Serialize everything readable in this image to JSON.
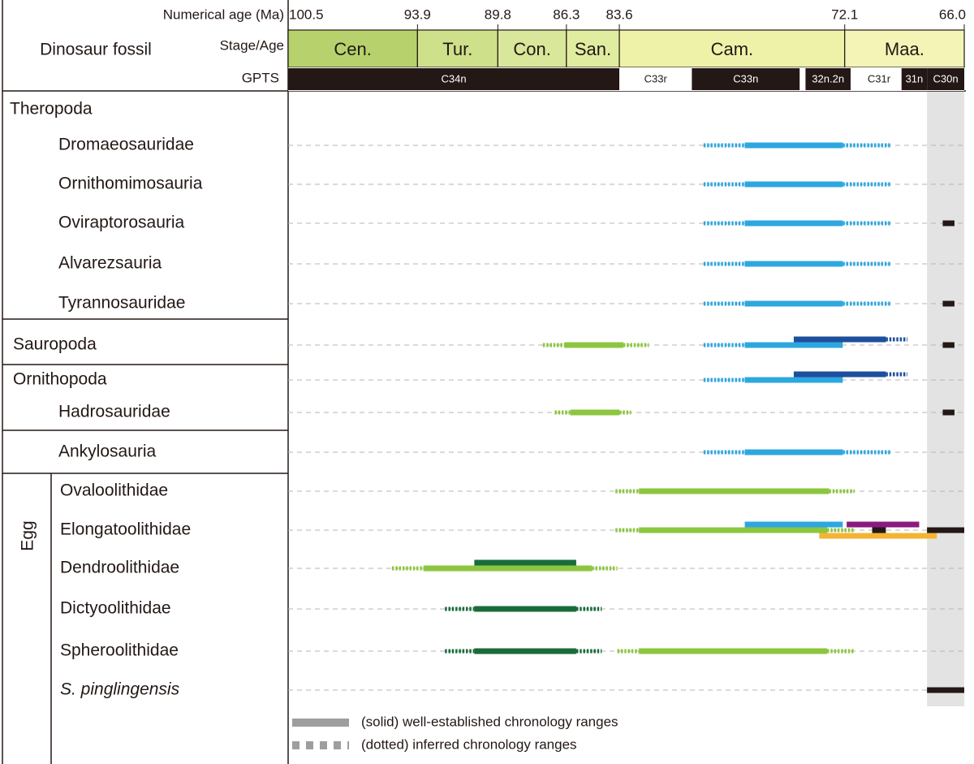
{
  "chart_data": {
    "type": "range",
    "age_label": "Numerical age (Ma)",
    "fossil_label": "Dinosaur fossil",
    "stage_label": "Stage/Age",
    "gpts_label": "GPTS",
    "xlim": [
      100.5,
      66.0
    ],
    "xticks": [
      100.5,
      93.9,
      89.8,
      86.3,
      83.6,
      72.1,
      {
        "value": 66.0,
        "label": "66.0"
      }
    ],
    "stages": [
      {
        "name": "Cen.",
        "color": "#b7d26c"
      },
      {
        "name": "Tur.",
        "color": "#cfe08b"
      },
      {
        "name": "Con.",
        "color": "#d8e799"
      },
      {
        "name": "San.",
        "color": "#e0ec9f"
      },
      {
        "name": "Cam.",
        "color": "#eef2a9"
      },
      {
        "name": "Maa.",
        "color": "#f3f4b5"
      }
    ],
    "gpts": [
      {
        "name": "C34n",
        "from": 100.5,
        "to": 83.6,
        "color": "#231815"
      },
      {
        "name": "C33r",
        "from": 83.6,
        "to": 79.9,
        "color": "#ffffff"
      },
      {
        "name": "C33n",
        "from": 79.9,
        "to": 74.4,
        "color": "#231815"
      },
      {
        "name": "32n.2n",
        "from": 74.1,
        "to": 71.8,
        "color": "#231815"
      },
      {
        "name": "C31r",
        "from": 71.5,
        "to": 69.2,
        "color": "#ffffff"
      },
      {
        "name": "31n",
        "from": 69.2,
        "to": 67.9,
        "color": "#231815"
      },
      {
        "name": "C30n",
        "from": 67.9,
        "to": 66.0,
        "color": "#231815",
        "shade": true
      }
    ],
    "groups": [
      {
        "name": "Theropoda",
        "members": [
          {
            "name": "Dromaeosauridae",
            "ranges": [
              {
                "from": 79.3,
                "to": 77.2,
                "style": "dotted",
                "color": "#2ea7e0"
              },
              {
                "from": 77.2,
                "to": 72.2,
                "style": "solid",
                "color": "#2ea7e0"
              },
              {
                "from": 72.2,
                "to": 69.75,
                "style": "dotted",
                "color": "#2ea7e0"
              }
            ]
          },
          {
            "name": "Ornithomimosauria",
            "ranges": [
              {
                "from": 79.3,
                "to": 77.2,
                "style": "dotted",
                "color": "#2ea7e0"
              },
              {
                "from": 77.2,
                "to": 72.2,
                "style": "solid",
                "color": "#2ea7e0"
              },
              {
                "from": 72.2,
                "to": 69.75,
                "style": "dotted",
                "color": "#2ea7e0"
              }
            ]
          },
          {
            "name": "Oviraptorosauria",
            "ranges": [
              {
                "from": 79.3,
                "to": 77.2,
                "style": "dotted",
                "color": "#2ea7e0"
              },
              {
                "from": 77.2,
                "to": 72.2,
                "style": "solid",
                "color": "#2ea7e0"
              },
              {
                "from": 72.2,
                "to": 69.75,
                "style": "dotted",
                "color": "#2ea7e0"
              },
              {
                "from": 67.1,
                "to": 66.5,
                "style": "solid",
                "color": "#231815"
              }
            ]
          },
          {
            "name": "Alvarezsauria",
            "ranges": [
              {
                "from": 79.3,
                "to": 77.2,
                "style": "dotted",
                "color": "#2ea7e0"
              },
              {
                "from": 77.2,
                "to": 72.2,
                "style": "solid",
                "color": "#2ea7e0"
              },
              {
                "from": 72.2,
                "to": 69.75,
                "style": "dotted",
                "color": "#2ea7e0"
              }
            ]
          },
          {
            "name": "Tyrannosauridae",
            "ranges": [
              {
                "from": 79.3,
                "to": 77.2,
                "style": "dotted",
                "color": "#2ea7e0"
              },
              {
                "from": 77.2,
                "to": 72.2,
                "style": "solid",
                "color": "#2ea7e0"
              },
              {
                "from": 72.2,
                "to": 69.75,
                "style": "dotted",
                "color": "#2ea7e0"
              },
              {
                "from": 67.1,
                "to": 66.5,
                "style": "solid",
                "color": "#231815"
              }
            ]
          }
        ]
      },
      {
        "name": "Sauropoda",
        "ranges": [
          {
            "from": 87.5,
            "to": 86.4,
            "style": "dotted",
            "color": "#8cc63f"
          },
          {
            "from": 86.4,
            "to": 83.4,
            "style": "solid",
            "color": "#8cc63f"
          },
          {
            "from": 83.4,
            "to": 82.1,
            "style": "dotted",
            "color": "#8cc63f"
          },
          {
            "from": 79.3,
            "to": 77.2,
            "style": "dotted",
            "color": "#2ea7e0"
          },
          {
            "from": 77.2,
            "to": 72.2,
            "style": "solid",
            "color": "#2ea7e0"
          },
          {
            "from": 74.7,
            "to": 70.0,
            "style": "solid",
            "color": "#1d4f9c"
          },
          {
            "from": 70.0,
            "to": 68.9,
            "style": "dotted",
            "color": "#1d4f9c"
          },
          {
            "from": 67.1,
            "to": 66.5,
            "style": "solid",
            "color": "#231815"
          }
        ]
      },
      {
        "name": "Ornithopoda",
        "ranges": [
          {
            "from": 79.3,
            "to": 77.2,
            "style": "dotted",
            "color": "#2ea7e0"
          },
          {
            "from": 77.2,
            "to": 72.2,
            "style": "solid",
            "color": "#2ea7e0"
          },
          {
            "from": 74.7,
            "to": 70.0,
            "style": "solid",
            "color": "#1d4f9c"
          },
          {
            "from": 70.0,
            "to": 68.9,
            "style": "dotted",
            "color": "#1d4f9c"
          }
        ],
        "members": [
          {
            "name": "Hadrosauridae",
            "ranges": [
              {
                "from": 86.9,
                "to": 86.1,
                "style": "dotted",
                "color": "#8cc63f"
              },
              {
                "from": 86.1,
                "to": 83.6,
                "style": "solid",
                "color": "#8cc63f"
              },
              {
                "from": 83.6,
                "to": 83.0,
                "style": "dotted",
                "color": "#8cc63f"
              },
              {
                "from": 67.1,
                "to": 66.5,
                "style": "solid",
                "color": "#231815"
              }
            ]
          }
        ]
      },
      {
        "name": "Ankylosauria",
        "ranges": [
          {
            "from": 79.3,
            "to": 77.2,
            "style": "dotted",
            "color": "#2ea7e0"
          },
          {
            "from": 77.2,
            "to": 72.2,
            "style": "solid",
            "color": "#2ea7e0"
          },
          {
            "from": 72.2,
            "to": 69.75,
            "style": "dotted",
            "color": "#2ea7e0"
          }
        ]
      },
      {
        "name": "Egg",
        "vertical": true,
        "members": [
          {
            "name": "Ovaloolithidae",
            "ranges": [
              {
                "from": 83.8,
                "to": 82.6,
                "style": "dotted",
                "color": "#8cc63f"
              },
              {
                "from": 82.6,
                "to": 72.9,
                "style": "solid",
                "color": "#8cc63f"
              },
              {
                "from": 72.9,
                "to": 71.6,
                "style": "dotted",
                "color": "#8cc63f"
              }
            ]
          },
          {
            "name": "Elongatoolithidae",
            "ranges": [
              {
                "from": 83.8,
                "to": 82.6,
                "style": "dotted",
                "color": "#8cc63f"
              },
              {
                "from": 82.6,
                "to": 73.0,
                "style": "solid",
                "color": "#8cc63f"
              },
              {
                "from": 73.0,
                "to": 71.6,
                "style": "dotted",
                "color": "#8cc63f"
              },
              {
                "from": 77.2,
                "to": 72.2,
                "style": "solid",
                "color": "#2ea7e0"
              },
              {
                "from": 72.0,
                "to": 68.3,
                "style": "solid",
                "color": "#8b1a7f"
              },
              {
                "from": 73.4,
                "to": 67.4,
                "style": "solid",
                "color": "#f5b335"
              },
              {
                "from": 70.7,
                "to": 70.0,
                "style": "solid",
                "color": "#231815"
              },
              {
                "from": 67.9,
                "to": 66.0,
                "style": "solid",
                "color": "#231815"
              }
            ]
          },
          {
            "name": "Dendroolithidae",
            "ranges": [
              {
                "from": 95.2,
                "to": 93.6,
                "style": "dotted",
                "color": "#8cc63f"
              },
              {
                "from": 93.6,
                "to": 85.0,
                "style": "solid",
                "color": "#8cc63f"
              },
              {
                "from": 85.0,
                "to": 83.7,
                "style": "dotted",
                "color": "#8cc63f"
              },
              {
                "from": 91.0,
                "to": 85.8,
                "style": "solid",
                "color": "#1a6b3a"
              }
            ]
          },
          {
            "name": "Dictyoolithidae",
            "ranges": [
              {
                "from": 92.5,
                "to": 91.0,
                "style": "dotted",
                "color": "#1a6b3a"
              },
              {
                "from": 91.0,
                "to": 85.8,
                "style": "solid",
                "color": "#1a6b3a"
              },
              {
                "from": 85.8,
                "to": 84.5,
                "style": "dotted",
                "color": "#1a6b3a"
              }
            ]
          },
          {
            "name": "Spheroolithidae",
            "ranges": [
              {
                "from": 92.5,
                "to": 91.0,
                "style": "dotted",
                "color": "#1a6b3a"
              },
              {
                "from": 91.0,
                "to": 85.8,
                "style": "solid",
                "color": "#1a6b3a"
              },
              {
                "from": 85.8,
                "to": 84.5,
                "style": "dotted",
                "color": "#1a6b3a"
              },
              {
                "from": 83.7,
                "to": 82.6,
                "style": "dotted",
                "color": "#8cc63f"
              },
              {
                "from": 82.6,
                "to": 73.0,
                "style": "solid",
                "color": "#8cc63f"
              },
              {
                "from": 73.0,
                "to": 71.6,
                "style": "dotted",
                "color": "#8cc63f"
              }
            ]
          },
          {
            "name": "S. pinglingensis",
            "italic": true,
            "ranges": [
              {
                "from": 67.9,
                "to": 66.0,
                "style": "solid",
                "color": "#231815"
              }
            ]
          }
        ]
      }
    ],
    "legend": [
      {
        "label": "(solid) well-established chronology ranges",
        "style": "solid",
        "color": "#9e9e9e"
      },
      {
        "label": "(dotted) inferred chronology ranges",
        "style": "dotted",
        "color": "#9e9e9e"
      }
    ]
  }
}
